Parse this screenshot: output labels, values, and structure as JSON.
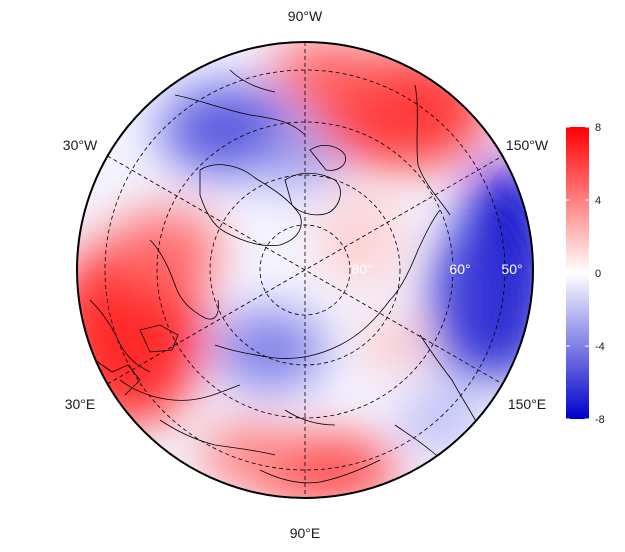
{
  "map": {
    "projection": "north-polar-stereographic",
    "longitude_labels": {
      "top": "90°W",
      "upper_left": "30°W",
      "upper_right": "150°W",
      "lower_left": "30°E",
      "lower_right": "150°E",
      "bottom": "90°E"
    },
    "latitude_labels": {
      "inner": "80°",
      "middle": "60°",
      "outer": "50°"
    },
    "colors": {
      "positive": "#ff0000",
      "neutral": "#ffffff",
      "negative": "#0000cc",
      "coastline": "#000000",
      "gridline": "#000000"
    }
  },
  "colorbar": {
    "min": -8,
    "max": 8,
    "ticks": [
      "8",
      "4",
      "0",
      "-4",
      "-8"
    ]
  }
}
